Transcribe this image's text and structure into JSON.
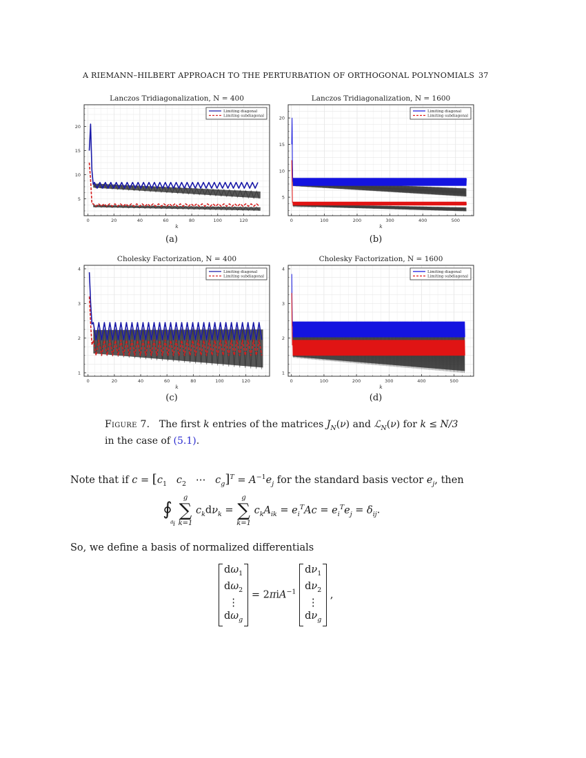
{
  "running_head": {
    "title": "A RIEMANN–HILBERT APPROACH TO THE PERTURBATION OF ORTHOGONAL POLYNOMIALS",
    "page_number": "37"
  },
  "figure": {
    "subcaptions": [
      "(a)",
      "(b)",
      "(c)",
      "(d)"
    ],
    "caption_label": "Figure 7.",
    "caption_text": "The first k entries of the matrices J_N(ν) and ℒ_N(ν) for k ≤ N/3 in the case of (5.1).",
    "caption_line1_pre": "The first ",
    "caption_line1_k": "k",
    "caption_line1_mid": " entries of the matrices ",
    "caption_line1_J": "J",
    "caption_line1_and": " and ",
    "caption_line1_L": "ℒ",
    "caption_line1_for": " for ",
    "caption_line1_cond": "k ≤ N/3",
    "caption_line2_pre": "in the case of ",
    "caption_ref": "(5.1)",
    "caption_line2_post": "."
  },
  "chart_data": [
    {
      "type": "line",
      "title": "Lanczos Tridiagonalization, N = 400",
      "xlabel": "k",
      "ylabel": "",
      "xlim": [
        -3,
        140
      ],
      "ylim": [
        1.5,
        24.5
      ],
      "xticks": [
        0,
        20,
        40,
        60,
        80,
        100,
        120
      ],
      "yticks": [
        5,
        10,
        15,
        20
      ],
      "grid": true,
      "legend_position": "upper right",
      "legend": [
        "Limiting diagonal",
        "Limiting subdiagonal"
      ],
      "series": [
        {
          "name": "Limiting diagonal",
          "color": "#1a1aa8",
          "style": "solid",
          "x": [
            1,
            2,
            4,
            6,
            133
          ],
          "start": [
            15,
            20.5,
            11,
            8
          ],
          "level": 7.8,
          "amp": 0.6,
          "period": 4.2,
          "k_max": 133
        },
        {
          "name": "Limiting subdiagonal",
          "color": "#d42020",
          "style": "dashed",
          "start": [
            12.5,
            9,
            4
          ],
          "level": 3.7,
          "amp": 0.25,
          "period": 4.2,
          "k_max": 133
        },
        {
          "name": "Matrix entries (diagonal band)",
          "color": "#3a3a3a",
          "style": "band",
          "start_level": 7.8,
          "end_level": 5.8,
          "width": 1.4,
          "k_max": 133
        },
        {
          "name": "Matrix entries (subdiagonal band)",
          "color": "#3a3a3a",
          "style": "band",
          "start_level": 3.5,
          "end_level": 2.9,
          "width": 0.7,
          "k_max": 133
        }
      ]
    },
    {
      "type": "line",
      "title": "Lanczos Tridiagonalization, N = 1600",
      "xlabel": "k",
      "ylabel": "",
      "xlim": [
        -10,
        555
      ],
      "ylim": [
        1.5,
        22.5
      ],
      "xticks": [
        0,
        100,
        200,
        300,
        400,
        500
      ],
      "yticks": [
        5,
        10,
        15,
        20
      ],
      "grid": true,
      "legend_position": "upper right",
      "legend": [
        "Limiting diagonal",
        "Limiting subdiagonal"
      ],
      "series": [
        {
          "name": "Limiting diagonal",
          "color": "#1414e0",
          "style": "solid",
          "start": [
            15,
            20,
            11,
            8
          ],
          "level": 7.9,
          "amp": 0.7,
          "period": 4.2,
          "k_max": 533
        },
        {
          "name": "Limiting subdiagonal",
          "color": "#e01414",
          "style": "dashed",
          "start": [
            12,
            9,
            4
          ],
          "level": 3.8,
          "amp": 0.3,
          "period": 4.2,
          "k_max": 533
        },
        {
          "name": "Matrix entries (diagonal band)",
          "color": "#3a3a3a",
          "style": "band",
          "start_level": 7.6,
          "end_level": 5.9,
          "width": 1.5,
          "k_max": 533
        },
        {
          "name": "Matrix entries (subdiagonal band)",
          "color": "#3a3a3a",
          "style": "band",
          "start_level": 3.5,
          "end_level": 2.7,
          "width": 0.7,
          "k_max": 533
        }
      ]
    },
    {
      "type": "line",
      "title": "Cholesky Factorization, N = 400",
      "xlabel": "k",
      "ylabel": "",
      "xlim": [
        -3,
        138
      ],
      "ylim": [
        0.9,
        4.1
      ],
      "xticks": [
        0,
        20,
        40,
        60,
        80,
        100,
        120
      ],
      "yticks": [
        1,
        2,
        3,
        4
      ],
      "grid": true,
      "legend_position": "upper right",
      "legend": [
        "Limiting diagonal",
        "Limiting subdiagonal"
      ],
      "series": [
        {
          "name": "Limiting diagonal",
          "color": "#1a1aa8",
          "style": "solid",
          "start": [
            3.9,
            3.0,
            2.4
          ],
          "level": 2.2,
          "amp": 0.25,
          "period": 4.2,
          "k_max": 133
        },
        {
          "name": "Limiting subdiagonal",
          "color": "#d42020",
          "style": "dashed",
          "start": [
            3.2,
            2.4,
            1.8
          ],
          "level": 1.72,
          "amp": 0.22,
          "period": 4.2,
          "k_max": 133
        },
        {
          "name": "Matrix entries (band)",
          "color": "#3a3a3a",
          "style": "band",
          "start_level": 1.9,
          "end_level": 1.7,
          "width": 1.1,
          "k_max": 133
        }
      ]
    },
    {
      "type": "line",
      "title": "Cholesky Factorization, N = 1600",
      "xlabel": "k",
      "ylabel": "",
      "xlim": [
        -10,
        560
      ],
      "ylim": [
        0.9,
        4.1
      ],
      "xticks": [
        0,
        100,
        200,
        300,
        400,
        500
      ],
      "yticks": [
        1,
        2,
        3,
        4
      ],
      "grid": true,
      "legend_position": "upper right",
      "legend": [
        "Limiting diagonal",
        "Limiting subdiagonal"
      ],
      "series": [
        {
          "name": "Limiting diagonal",
          "color": "#1414e0",
          "style": "solid",
          "start": [
            3.85,
            2.9,
            2.35
          ],
          "level": 2.25,
          "amp": 0.22,
          "period": 4.2,
          "k_max": 533
        },
        {
          "name": "Limiting subdiagonal",
          "color": "#e01414",
          "style": "dashed",
          "start": [
            3.3,
            2.4,
            1.8
          ],
          "level": 1.72,
          "amp": 0.22,
          "period": 4.2,
          "k_max": 533
        },
        {
          "name": "Matrix entries (band)",
          "color": "#3a3a3a",
          "style": "band",
          "start_level": 1.8,
          "end_level": 1.6,
          "width": 1.1,
          "k_max": 533
        }
      ]
    }
  ],
  "body": {
    "para1_pre": "Note that if ",
    "para1_post": " for the standard basis vector ",
    "para1_end": ", then",
    "para2": "So, we define a basis of normalized differentials"
  }
}
